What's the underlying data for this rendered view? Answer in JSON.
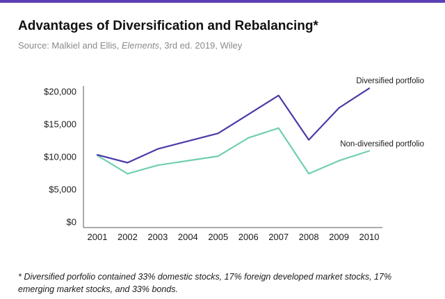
{
  "header": {
    "title": "Advantages of Diversification and Rebalancing*",
    "source_prefix": "Source: Malkiel and Ellis, ",
    "source_italic": "Elements",
    "source_suffix": ", 3rd ed. 2019, Wiley"
  },
  "footnote": "* Diversified porfolio contained 33% domestic stocks, 17% foreign developed market stocks, 17% emerging market stocks, and 33% bonds.",
  "colors": {
    "accent_bar": "#5b3fb5",
    "diversified": "#4a3aa8",
    "non_diversified": "#6fcfb0",
    "axis": "#555555"
  },
  "chart_data": {
    "type": "line",
    "title": "Advantages of Diversification and Rebalancing*",
    "x": [
      "2001",
      "2002",
      "2003",
      "2004",
      "2005",
      "2006",
      "2007",
      "2008",
      "2009",
      "2010"
    ],
    "yticks": [
      "$0",
      "$5,000",
      "$10,000",
      "$15,000",
      "$20,000"
    ],
    "ylim": [
      0,
      21000
    ],
    "grid": false,
    "series": [
      {
        "name": "Diversified portfolio",
        "values": [
          10300,
          9100,
          11200,
          12400,
          13600,
          16500,
          19400,
          12600,
          17500,
          20500
        ]
      },
      {
        "name": "Non-diversified portfolio",
        "values": [
          10200,
          7400,
          8700,
          9400,
          10100,
          12900,
          14400,
          7400,
          9400,
          10900
        ]
      }
    ]
  }
}
